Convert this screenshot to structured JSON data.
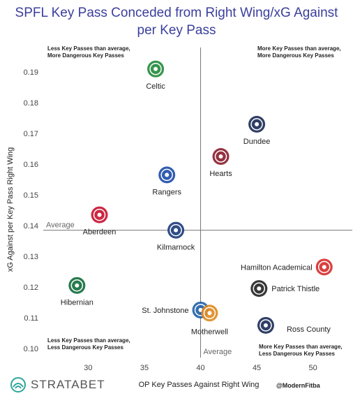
{
  "chart_data": {
    "type": "scatter",
    "title_line1": "SPFL Key Pass Conceded from Right Wing/xG Against",
    "title_line2": "per Key Pass",
    "xlabel": "OP Key Passes Against Right Wing",
    "ylabel": "xG Against per Key Pass Right Wing",
    "xlim": [
      26,
      53.5
    ],
    "ylim": [
      0.097,
      0.198
    ],
    "x_ticks": [
      "30",
      "35",
      "40",
      "45",
      "50"
    ],
    "x_tick_values": [
      30,
      35,
      40,
      45,
      50
    ],
    "y_ticks": [
      "0.10",
      "0.11",
      "0.12",
      "0.13",
      "0.14",
      "0.15",
      "0.16",
      "0.17",
      "0.18",
      "0.19"
    ],
    "y_tick_values": [
      0.1,
      0.11,
      0.12,
      0.13,
      0.14,
      0.15,
      0.16,
      0.17,
      0.18,
      0.19
    ],
    "avg_x": 40.0,
    "avg_y": 0.1385,
    "avg_x_label": "Average",
    "avg_y_label": "Average",
    "grid": false,
    "quadrant_labels": {
      "top_left": [
        "Less Key Passes than average,",
        "More Dangerous Key Passes"
      ],
      "top_right": [
        "More Key Passes than average,",
        "More Dangerous Key Passes"
      ],
      "bottom_left": [
        "Less Key Passes than average,",
        "Less Dangerous Key Passes"
      ],
      "bottom_right": [
        "More Key Passes than average,",
        "Less Dangerous Key Passes"
      ]
    },
    "points": [
      {
        "team": "Celtic",
        "x": 36.0,
        "y": 0.191,
        "color": "#1f8a3a",
        "label_pos": "below"
      },
      {
        "team": "Dundee",
        "x": 45.0,
        "y": 0.173,
        "color": "#1b2a55",
        "label_pos": "below"
      },
      {
        "team": "Hearts",
        "x": 41.8,
        "y": 0.1625,
        "color": "#8a1c2b",
        "label_pos": "below"
      },
      {
        "team": "Rangers",
        "x": 37.0,
        "y": 0.1565,
        "color": "#1b4aa8",
        "label_pos": "below"
      },
      {
        "team": "Aberdeen",
        "x": 31.0,
        "y": 0.1435,
        "color": "#c8102e",
        "label_pos": "below"
      },
      {
        "team": "Kilmarnock",
        "x": 37.8,
        "y": 0.1385,
        "color": "#1b3a7a",
        "label_pos": "below"
      },
      {
        "team": "Hamilton Academical",
        "x": 51.0,
        "y": 0.1265,
        "color": "#d62b2b",
        "label_pos": "left"
      },
      {
        "team": "Patrick Thistle",
        "x": 45.2,
        "y": 0.1195,
        "color": "#222222",
        "label_pos": "right"
      },
      {
        "team": "Hibernian",
        "x": 29.0,
        "y": 0.1205,
        "color": "#0f6b3a",
        "label_pos": "below"
      },
      {
        "team": "St. Johnstone",
        "x": 40.0,
        "y": 0.1125,
        "color": "#1f5fa8",
        "label_pos": "left"
      },
      {
        "team": "Motherwell",
        "x": 40.8,
        "y": 0.1115,
        "color": "#e0891f",
        "label_pos": "below"
      },
      {
        "team": "Ross County",
        "x": 45.8,
        "y": 0.1075,
        "color": "#1b2a55",
        "label_pos": "right"
      }
    ]
  },
  "footer": {
    "brand": "STRATABET",
    "handle": "@ModernFitba"
  }
}
